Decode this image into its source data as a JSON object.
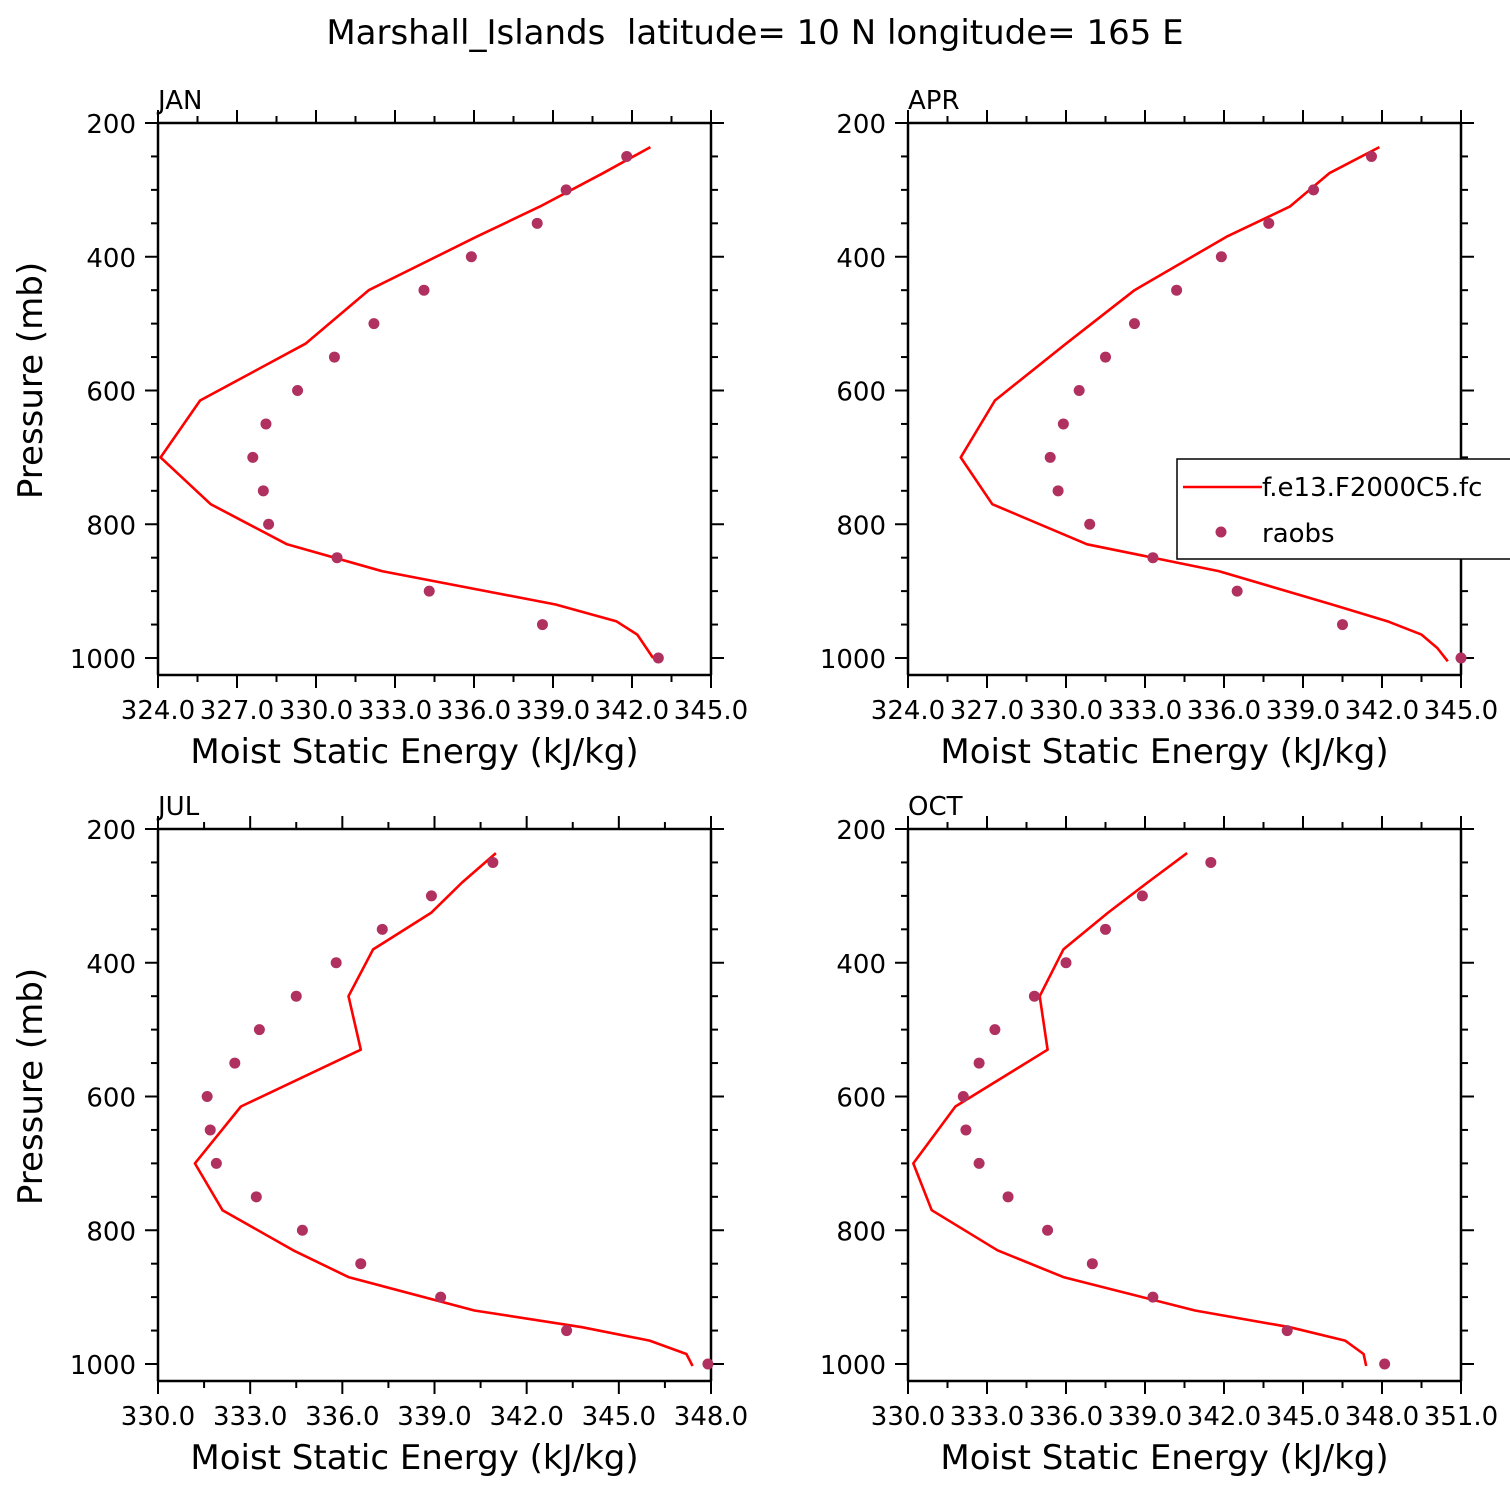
{
  "title": "Marshall_Islands  latitude= 10 N longitude= 165 E",
  "colors": {
    "model": "#ff0000",
    "obs": "#b0305f",
    "axis": "#000000"
  },
  "legend": {
    "model_label": "f.e13.F2000C5.fc",
    "obs_label": "raobs",
    "placement": "right-middle"
  },
  "chart_data": [
    {
      "type": "line",
      "panel": "JAN",
      "xlabel": "Moist Static Energy (kJ/kg)",
      "ylabel": "Pressure (mb)",
      "xlim": [
        324.0,
        345.0
      ],
      "ylim": [
        200,
        1000
      ],
      "xticks": [
        324.0,
        327.0,
        330.0,
        333.0,
        336.0,
        339.0,
        342.0,
        345.0
      ],
      "xtick_labels": [
        "324.0",
        "327.0",
        "330.0",
        "333.0",
        "336.0",
        "339.0",
        "342.0",
        "345.0"
      ],
      "yticks": [
        200,
        400,
        600,
        800,
        1000
      ],
      "ytick_labels": [
        "200",
        "400",
        "600",
        "800",
        "1000"
      ],
      "series": [
        {
          "name": "f.e13.F2000C5.fc",
          "pressure": [
            236,
            275,
            325,
            370,
            450,
            530,
            615,
            700,
            770,
            830,
            870,
            920,
            945,
            965,
            1000
          ],
          "values": [
            342.7,
            340.9,
            338.5,
            336.1,
            332.0,
            329.6,
            325.6,
            324.1,
            326.0,
            328.9,
            332.5,
            339.1,
            341.4,
            342.2,
            342.8
          ]
        },
        {
          "name": "raobs",
          "pressure": [
            250,
            300,
            350,
            400,
            450,
            500,
            550,
            600,
            650,
            700,
            750,
            800,
            850,
            900,
            950,
            1000
          ],
          "values": [
            341.8,
            339.5,
            338.4,
            335.9,
            334.1,
            332.2,
            330.7,
            329.3,
            328.1,
            327.6,
            328.0,
            328.2,
            330.8,
            334.3,
            338.6,
            343.0
          ]
        }
      ]
    },
    {
      "type": "line",
      "panel": "APR",
      "xlabel": "Moist Static Energy (kJ/kg)",
      "ylabel": "",
      "xlim": [
        324.0,
        345.0
      ],
      "ylim": [
        200,
        1000
      ],
      "xticks": [
        324.0,
        327.0,
        330.0,
        333.0,
        336.0,
        339.0,
        342.0,
        345.0
      ],
      "xtick_labels": [
        "324.0",
        "327.0",
        "330.0",
        "333.0",
        "336.0",
        "339.0",
        "342.0",
        "345.0"
      ],
      "yticks": [
        200,
        400,
        600,
        800,
        1000
      ],
      "ytick_labels": [
        "200",
        "400",
        "600",
        "800",
        "1000"
      ],
      "series": [
        {
          "name": "f.e13.F2000C5.fc",
          "pressure": [
            236,
            275,
            325,
            370,
            450,
            530,
            615,
            700,
            770,
            830,
            870,
            920,
            945,
            965,
            985,
            1005
          ],
          "values": [
            341.9,
            340.0,
            338.5,
            336.1,
            332.6,
            330.0,
            327.3,
            326.0,
            327.2,
            330.8,
            335.8,
            340.1,
            342.2,
            343.5,
            344.1,
            344.5
          ]
        },
        {
          "name": "raobs",
          "pressure": [
            250,
            300,
            350,
            400,
            450,
            500,
            550,
            600,
            650,
            700,
            750,
            800,
            850,
            900,
            950,
            1000
          ],
          "values": [
            341.6,
            339.4,
            337.7,
            335.9,
            334.2,
            332.6,
            331.5,
            330.5,
            329.9,
            329.4,
            329.7,
            330.9,
            333.3,
            336.5,
            340.5,
            345.0
          ]
        }
      ]
    },
    {
      "type": "line",
      "panel": "JUL",
      "xlabel": "Moist Static Energy (kJ/kg)",
      "ylabel": "Pressure (mb)",
      "xlim": [
        330.0,
        348.0
      ],
      "ylim": [
        200,
        1000
      ],
      "xticks": [
        330.0,
        333.0,
        336.0,
        339.0,
        342.0,
        345.0,
        348.0
      ],
      "xtick_labels": [
        "330.0",
        "333.0",
        "336.0",
        "339.0",
        "342.0",
        "345.0",
        "348.0"
      ],
      "yticks": [
        200,
        400,
        600,
        800,
        1000
      ],
      "ytick_labels": [
        "200",
        "400",
        "600",
        "800",
        "1000"
      ],
      "series": [
        {
          "name": "f.e13.F2000C5.fc",
          "pressure": [
            236,
            280,
            325,
            380,
            450,
            530,
            615,
            700,
            770,
            830,
            870,
            920,
            945,
            965,
            985,
            1003
          ],
          "values": [
            341.0,
            339.9,
            338.9,
            337.0,
            336.2,
            336.6,
            332.7,
            331.2,
            332.1,
            334.4,
            336.2,
            340.3,
            343.8,
            346.0,
            347.2,
            347.4
          ]
        },
        {
          "name": "raobs",
          "pressure": [
            250,
            300,
            350,
            400,
            450,
            500,
            550,
            600,
            650,
            700,
            750,
            800,
            850,
            900,
            950,
            1000
          ],
          "values": [
            340.9,
            338.9,
            337.3,
            335.8,
            334.5,
            333.3,
            332.5,
            331.6,
            331.7,
            331.9,
            333.2,
            334.7,
            336.6,
            339.2,
            343.3,
            347.9
          ]
        }
      ]
    },
    {
      "type": "line",
      "panel": "OCT",
      "xlabel": "Moist Static Energy (kJ/kg)",
      "ylabel": "",
      "xlim": [
        330.0,
        351.0
      ],
      "ylim": [
        200,
        1000
      ],
      "xticks": [
        330.0,
        333.0,
        336.0,
        339.0,
        342.0,
        345.0,
        348.0,
        351.0
      ],
      "xtick_labels": [
        "330.0",
        "333.0",
        "336.0",
        "339.0",
        "342.0",
        "345.0",
        "348.0",
        "351.0"
      ],
      "yticks": [
        200,
        400,
        600,
        800,
        1000
      ],
      "ytick_labels": [
        "200",
        "400",
        "600",
        "800",
        "1000"
      ],
      "series": [
        {
          "name": "f.e13.F2000C5.fc",
          "pressure": [
            236,
            280,
            325,
            380,
            450,
            530,
            615,
            700,
            770,
            830,
            870,
            920,
            945,
            965,
            985,
            1003
          ],
          "values": [
            340.6,
            339.1,
            337.6,
            335.9,
            335.0,
            335.3,
            331.8,
            330.2,
            330.9,
            333.4,
            335.9,
            340.9,
            344.5,
            346.6,
            347.3,
            347.4
          ]
        },
        {
          "name": "raobs",
          "pressure": [
            250,
            300,
            350,
            400,
            450,
            500,
            550,
            600,
            650,
            700,
            750,
            800,
            850,
            900,
            950,
            1000
          ],
          "values": [
            341.5,
            338.9,
            337.5,
            336.0,
            334.8,
            333.3,
            332.7,
            332.1,
            332.2,
            332.7,
            333.8,
            335.3,
            337.0,
            339.3,
            344.4,
            348.1
          ]
        }
      ]
    }
  ]
}
